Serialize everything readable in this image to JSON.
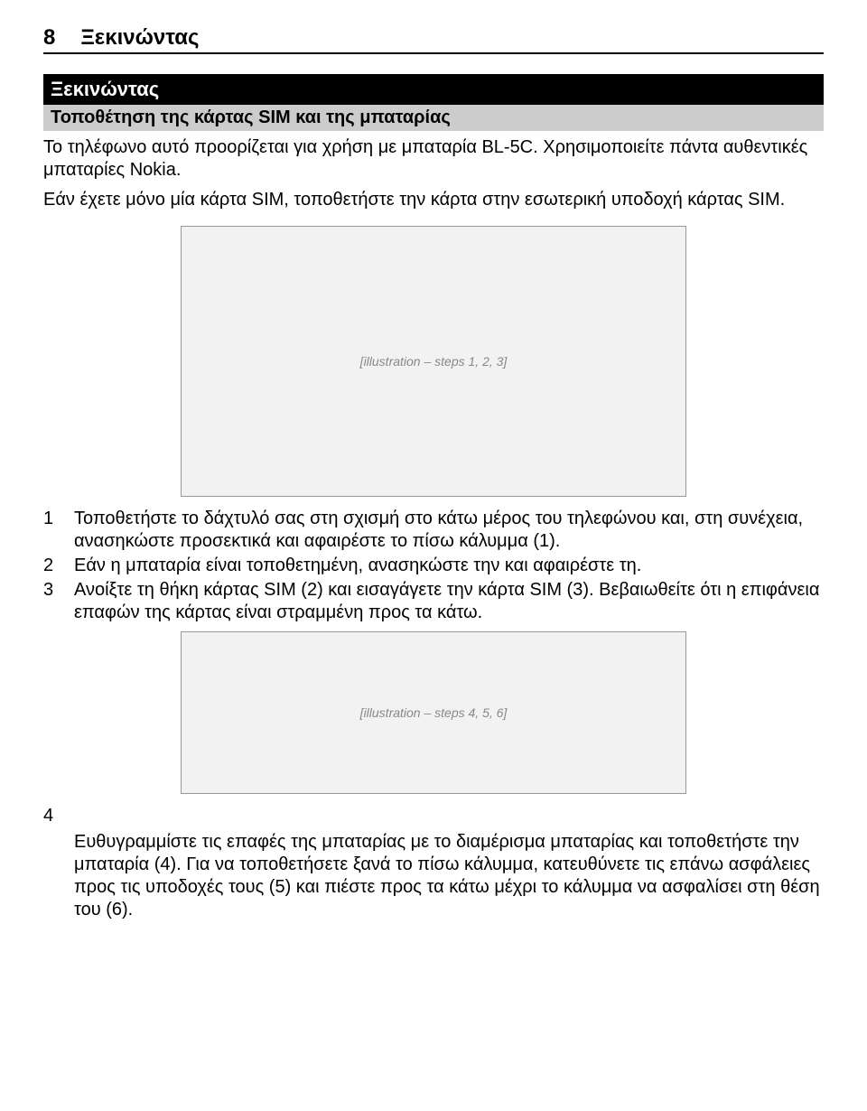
{
  "page_number": "8",
  "header_title": "Ξεκινώντας",
  "section_title": "Ξεκινώντας",
  "subsection_title": "Τοποθέτηση της κάρτας SIM και της μπαταρίας",
  "intro_para1": "Το τηλέφωνο αυτό προορίζεται για χρήση με μπαταρία BL-5C. Χρησιμοποιείτε πάντα αυθεντικές μπαταρίες Nokia.",
  "intro_para2": "Εάν έχετε μόνο μία κάρτα SIM, τοποθετήστε την κάρτα στην εσωτερική υποδοχή κάρτας SIM.",
  "illustration1_label": "[illustration – steps 1, 2, 3]",
  "illustration2_label": "[illustration – steps 4, 5, 6]",
  "steps_a": [
    {
      "n": "1",
      "t": "Τοποθετήστε το δάχτυλό σας στη σχισμή στο κάτω μέρος του τηλεφώνου και, στη συνέχεια, ανασηκώστε προσεκτικά και αφαιρέστε το πίσω κάλυμμα (1)."
    },
    {
      "n": "2",
      "t": "Εάν η μπαταρία είναι τοποθετημένη, ανασηκώστε την και αφαιρέστε τη."
    },
    {
      "n": "3",
      "t": "Ανοίξτε τη θήκη κάρτας SIM (2) και εισαγάγετε την κάρτα SIM (3). Βεβαιωθείτε ότι η επιφάνεια επαφών της κάρτας είναι στραμμένη προς τα κάτω."
    }
  ],
  "step4_n": "4",
  "step4_text": "Ευθυγραμμίστε τις επαφές της μπαταρίας με το διαμέρισμα μπαταρίας και τοποθετήστε την μπαταρία (4). Για να τοποθετήσετε ξανά το πίσω κάλυμμα, κατευθύνετε τις επάνω ασφάλειες προς τις υποδοχές τους (5) και πιέστε προς τα κάτω μέχρι το κάλυμμα να ασφαλίσει στη θέση του (6)."
}
